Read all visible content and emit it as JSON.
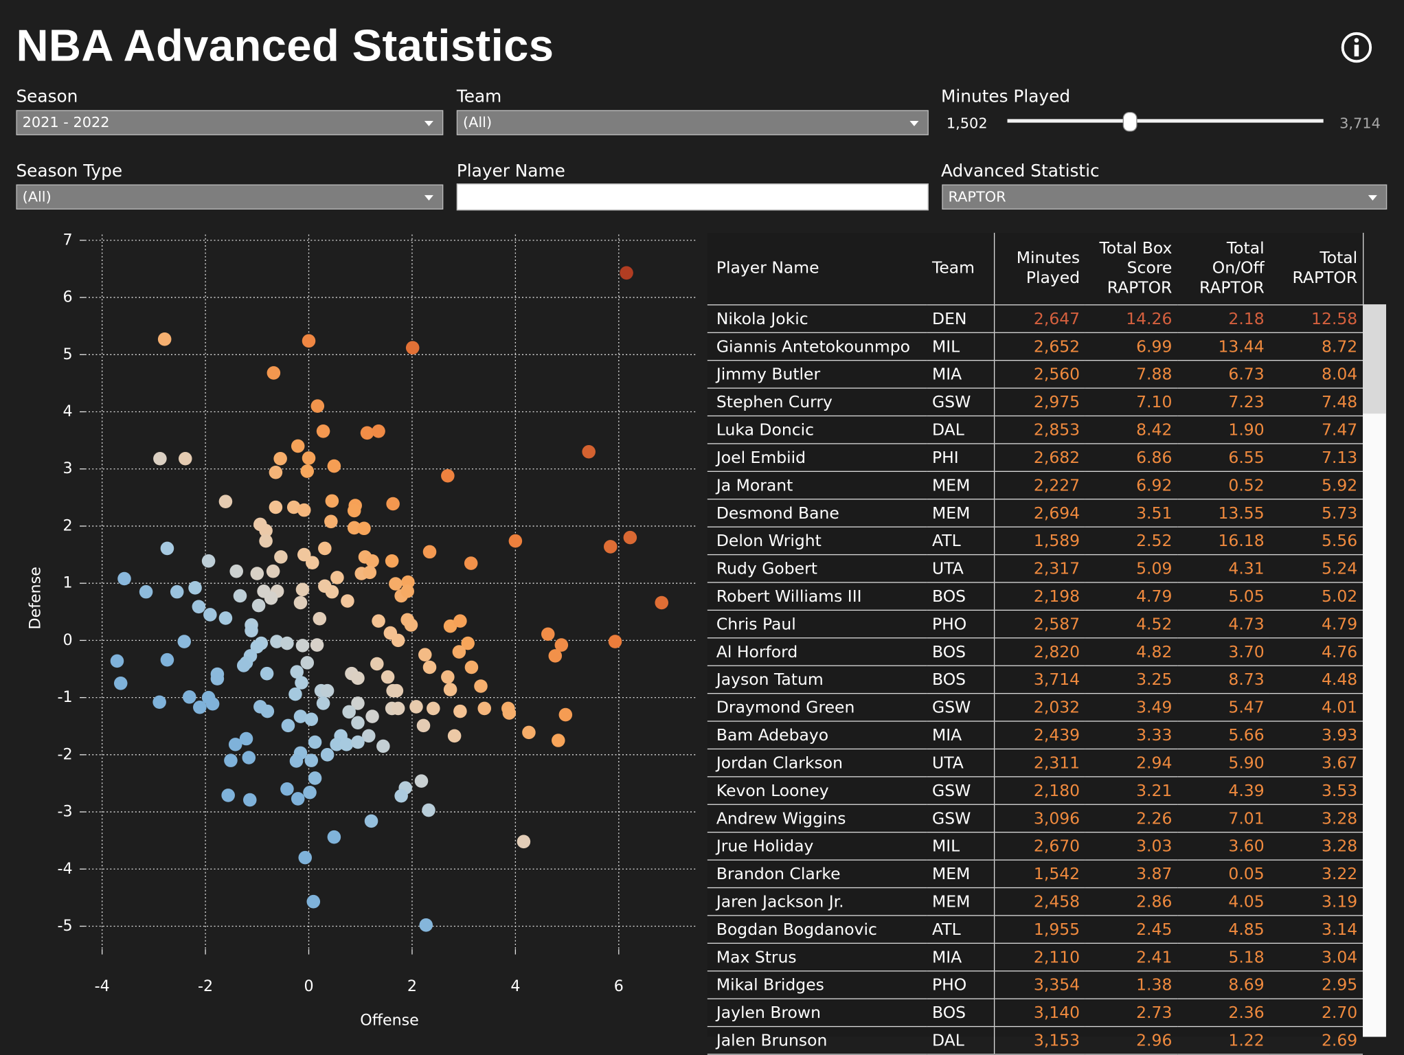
{
  "header": {
    "title": "NBA Advanced Statistics"
  },
  "filters": {
    "season": {
      "label": "Season",
      "value": "2021 - 2022"
    },
    "team": {
      "label": "Team",
      "value": "(All)"
    },
    "minutes_played": {
      "label": "Minutes Played",
      "min": "1,502",
      "max": "3,714"
    },
    "season_type": {
      "label": "Season Type",
      "value": "(All)"
    },
    "player_name": {
      "label": "Player Name"
    },
    "advanced_statistic": {
      "label": "Advanced Statistic",
      "value": "RAPTOR"
    }
  },
  "chart_data": {
    "type": "scatter",
    "x_label": "Offense",
    "y_label": "Defense",
    "xlim": [
      -4.33,
      7.49
    ],
    "ylim": [
      -5.4,
      7.1
    ],
    "xticks": [
      -4,
      -2,
      0,
      2,
      4,
      6
    ],
    "yticks": [
      -5,
      -4,
      -3,
      -2,
      -1,
      0,
      1,
      2,
      3,
      4,
      5,
      6,
      7
    ],
    "grid": true,
    "color_scale": {
      "stops": [
        -3,
        -1,
        0,
        1.5,
        3,
        6,
        12.6
      ],
      "colors": [
        "#7fb2da",
        "#a9cbe0",
        "#d5d2cc",
        "#f3c69a",
        "#f7a55a",
        "#ec7c3a",
        "#b13d22"
      ]
    },
    "x": [
      6.15,
      -2.79,
      0,
      2.01,
      -0.68,
      0.17,
      0.28,
      1.13,
      1.35,
      5.42,
      -0.21,
      -2.88,
      -2.39,
      -0.55,
      0,
      0.49,
      -0.64,
      -0.03,
      2.69,
      -1.61,
      0.45,
      0.9,
      1.63,
      -0.64,
      -0.29,
      -0.09,
      0.88,
      -0.94,
      0.43,
      -0.83,
      0.88,
      1.07,
      -0.83,
      4,
      6.22,
      5.84,
      0.31,
      2.34,
      -0.09,
      1.09,
      1.23,
      -0.54,
      0.07,
      3.14,
      1.61,
      -2.74,
      -1.94,
      -1.4,
      -1,
      -0.69,
      0.55,
      1.02,
      1.18,
      -3.57,
      1.92,
      1.68,
      -3.15,
      -2.55,
      -2.2,
      -1.33,
      -0.87,
      -0.61,
      -0.12,
      0.31,
      0.45,
      1.79,
      1.91,
      -0.73,
      0.75,
      -0.16,
      -2.13,
      -1.91,
      -1.61,
      -0.97,
      6.83,
      0.21,
      1.35,
      1.91,
      1.98,
      2.74,
      2.93,
      -1.11,
      -1.11,
      1.58,
      4.63,
      -2.41,
      -0.92,
      -1,
      -0.62,
      -0.42,
      -0.12,
      0.16,
      1.73,
      4.89,
      5.93,
      3.08,
      4.77,
      2.25,
      2.91,
      -3.71,
      -2.74,
      -1.13,
      -1.21,
      -1.26,
      -0.03,
      1.32,
      2.34,
      3.15,
      -0.81,
      -0.23,
      0.83,
      -1.77,
      -1.77,
      -0.14,
      0.95,
      1.53,
      2.69,
      -3.64,
      1.7,
      2.74,
      3.33,
      -0.26,
      0.24,
      0.36,
      1.63,
      -2.31,
      -1.94,
      -2.89,
      -1.86,
      -2.11,
      -0.94,
      -0.8,
      0.28,
      0.95,
      1.61,
      1.73,
      2.08,
      2.41,
      2.93,
      3.4,
      3.86,
      3.88,
      4.97,
      0.78,
      1.23,
      -0.16,
      0.05,
      0.95,
      -0.4,
      2.22,
      4.26,
      2.82,
      4.83,
      -1.21,
      -1.42,
      0.62,
      1.16,
      0.12,
      0.54,
      0.73,
      0.95,
      1.44,
      -0.16,
      0.36,
      -1.16,
      -1.51,
      -0.24,
      0.05,
      2.18,
      0.12,
      1.87,
      -0.42,
      0.02,
      -1.56,
      1.79,
      -1.14,
      -0.21,
      2.32,
      1.21,
      4.16,
      0.49,
      -0.07,
      0.09,
      2.27
    ],
    "values": [
      6.43,
      5.27,
      5.24,
      5.12,
      4.68,
      4.1,
      3.66,
      3.63,
      3.66,
      3.3,
      3.4,
      3.18,
      3.18,
      3.18,
      3.19,
      3.05,
      2.94,
      2.96,
      2.88,
      2.43,
      2.44,
      2.36,
      2.39,
      2.33,
      2.33,
      2.28,
      2.27,
      2.03,
      2.08,
      1.92,
      1.97,
      1.96,
      1.74,
      1.74,
      1.8,
      1.64,
      1.61,
      1.55,
      1.5,
      1.46,
      1.39,
      1.46,
      1.36,
      1.35,
      1.39,
      1.61,
      1.39,
      1.21,
      1.17,
      1.21,
      1.1,
      1.17,
      1.19,
      1.08,
      1.02,
      0.99,
      0.85,
      0.85,
      0.92,
      0.78,
      0.86,
      0.86,
      0.89,
      0.95,
      0.85,
      0.78,
      0.86,
      0.74,
      0.69,
      0.66,
      0.59,
      0.45,
      0.39,
      0.61,
      0.66,
      0.38,
      0.34,
      0.36,
      0.27,
      0.25,
      0.34,
      0.27,
      0.17,
      0.13,
      0.11,
      -0.02,
      -0.05,
      -0.11,
      -0.02,
      -0.05,
      -0.09,
      -0.08,
      0,
      -0.08,
      -0.02,
      -0.05,
      -0.27,
      -0.25,
      -0.2,
      -0.36,
      -0.34,
      -0.27,
      -0.39,
      -0.44,
      -0.39,
      -0.41,
      -0.47,
      -0.47,
      -0.58,
      -0.55,
      -0.58,
      -0.59,
      -0.67,
      -0.74,
      -0.66,
      -0.64,
      -0.64,
      -0.75,
      -0.88,
      -0.86,
      -0.8,
      -0.94,
      -0.88,
      -0.88,
      -0.88,
      -0.99,
      -1,
      -1.08,
      -1.11,
      -1.17,
      -1.16,
      -1.24,
      -1.1,
      -1.1,
      -1.19,
      -1.19,
      -1.16,
      -1.19,
      -1.24,
      -1.19,
      -1.19,
      -1.27,
      -1.3,
      -1.25,
      -1.33,
      -1.33,
      -1.38,
      -1.44,
      -1.49,
      -1.49,
      -1.61,
      -1.67,
      -1.75,
      -1.72,
      -1.82,
      -1.67,
      -1.67,
      -1.78,
      -1.82,
      -1.82,
      -1.78,
      -1.85,
      -1.97,
      -2,
      -2.05,
      -2.1,
      -2.11,
      -2.1,
      -2.46,
      -2.41,
      -2.58,
      -2.6,
      -2.66,
      -2.71,
      -2.72,
      -2.79,
      -2.77,
      -2.97,
      -3.16,
      -3.52,
      -3.44,
      -3.8,
      -4.57,
      -4.98
    ]
  },
  "table": {
    "columns": [
      "Player Name",
      "Team",
      "Minutes Played",
      "Total Box Score RAPTOR",
      "Total On/Off RAPTOR",
      "Total RAPTOR"
    ],
    "rows": [
      [
        "Nikola Jokic",
        "DEN",
        "2,647",
        "14.26",
        "2.18",
        "12.58"
      ],
      [
        "Giannis Antetokounmpo",
        "MIL",
        "2,652",
        "6.99",
        "13.44",
        "8.72"
      ],
      [
        "Jimmy Butler",
        "MIA",
        "2,560",
        "7.88",
        "6.73",
        "8.04"
      ],
      [
        "Stephen Curry",
        "GSW",
        "2,975",
        "7.10",
        "7.23",
        "7.48"
      ],
      [
        "Luka Doncic",
        "DAL",
        "2,853",
        "8.42",
        "1.90",
        "7.47"
      ],
      [
        "Joel Embiid",
        "PHI",
        "2,682",
        "6.86",
        "6.55",
        "7.13"
      ],
      [
        "Ja Morant",
        "MEM",
        "2,227",
        "6.92",
        "0.52",
        "5.92"
      ],
      [
        "Desmond Bane",
        "MEM",
        "2,694",
        "3.51",
        "13.55",
        "5.73"
      ],
      [
        "Delon Wright",
        "ATL",
        "1,589",
        "2.52",
        "16.18",
        "5.56"
      ],
      [
        "Rudy Gobert",
        "UTA",
        "2,317",
        "5.09",
        "4.31",
        "5.24"
      ],
      [
        "Robert Williams III",
        "BOS",
        "2,198",
        "4.79",
        "5.05",
        "5.02"
      ],
      [
        "Chris Paul",
        "PHO",
        "2,587",
        "4.52",
        "4.73",
        "4.79"
      ],
      [
        "Al Horford",
        "BOS",
        "2,820",
        "4.82",
        "3.70",
        "4.76"
      ],
      [
        "Jayson Tatum",
        "BOS",
        "3,714",
        "3.25",
        "8.73",
        "4.48"
      ],
      [
        "Draymond Green",
        "GSW",
        "2,032",
        "3.49",
        "5.47",
        "4.01"
      ],
      [
        "Bam Adebayo",
        "MIA",
        "2,439",
        "3.33",
        "5.66",
        "3.93"
      ],
      [
        "Jordan Clarkson",
        "UTA",
        "2,311",
        "2.94",
        "5.90",
        "3.67"
      ],
      [
        "Kevon Looney",
        "GSW",
        "2,180",
        "3.21",
        "4.39",
        "3.53"
      ],
      [
        "Andrew Wiggins",
        "GSW",
        "3,096",
        "2.26",
        "7.01",
        "3.28"
      ],
      [
        "Jrue Holiday",
        "MIL",
        "2,670",
        "3.03",
        "3.60",
        "3.28"
      ],
      [
        "Brandon Clarke",
        "MEM",
        "1,542",
        "3.87",
        "0.05",
        "3.22"
      ],
      [
        "Jaren Jackson Jr.",
        "MEM",
        "2,458",
        "2.86",
        "4.05",
        "3.19"
      ],
      [
        "Bogdan Bogdanovic",
        "ATL",
        "1,955",
        "2.45",
        "4.85",
        "3.14"
      ],
      [
        "Max Strus",
        "MIA",
        "2,110",
        "2.41",
        "5.18",
        "3.04"
      ],
      [
        "Mikal Bridges",
        "PHO",
        "3,354",
        "1.38",
        "8.69",
        "2.95"
      ],
      [
        "Jaylen Brown",
        "BOS",
        "3,140",
        "2.73",
        "2.36",
        "2.70"
      ],
      [
        "Jalen Brunson",
        "DAL",
        "3,153",
        "2.96",
        "1.22",
        "2.69"
      ]
    ]
  }
}
